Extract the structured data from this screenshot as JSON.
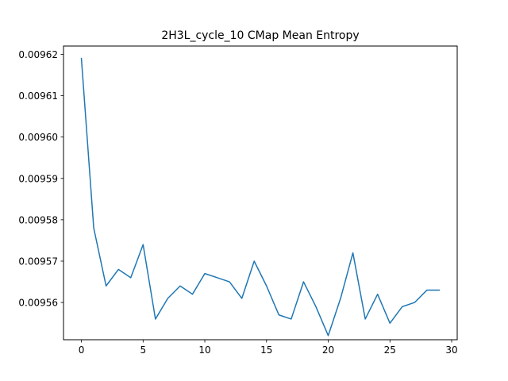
{
  "chart_data": {
    "type": "line",
    "title": "2H3L_cycle_10 CMap Mean Entropy",
    "xlabel": "",
    "ylabel": "",
    "xlim": [
      -1.45,
      30.45
    ],
    "ylim": [
      0.009551,
      0.009622
    ],
    "xticks": [
      0,
      5,
      10,
      15,
      20,
      25,
      30
    ],
    "xtick_labels": [
      "0",
      "5",
      "10",
      "15",
      "20",
      "25",
      "30"
    ],
    "yticks": [
      0.00955,
      0.00956,
      0.00957,
      0.00958,
      0.00959,
      0.0096,
      0.00961,
      0.00962
    ],
    "ytick_labels": [
      "0.00955",
      "0.00956",
      "0.00957",
      "0.00958",
      "0.00959",
      "0.00960",
      "0.00961",
      "0.00962"
    ],
    "grid": false,
    "series": [
      {
        "color": "#1f77b4",
        "x": [
          0,
          1,
          2,
          3,
          4,
          5,
          6,
          7,
          8,
          9,
          10,
          11,
          12,
          13,
          14,
          15,
          16,
          17,
          18,
          19,
          20,
          21,
          22,
          23,
          24,
          25,
          26,
          27,
          28,
          29
        ],
        "values": [
          0.009619,
          0.009578,
          0.009564,
          0.009568,
          0.009566,
          0.009574,
          0.009556,
          0.009561,
          0.009564,
          0.009562,
          0.009567,
          0.009566,
          0.009565,
          0.009561,
          0.00957,
          0.009564,
          0.009557,
          0.009556,
          0.009565,
          0.009559,
          0.009552,
          0.009561,
          0.009572,
          0.009556,
          0.009562,
          0.009555,
          0.009559,
          0.00956,
          0.009563,
          0.009563
        ]
      }
    ]
  }
}
